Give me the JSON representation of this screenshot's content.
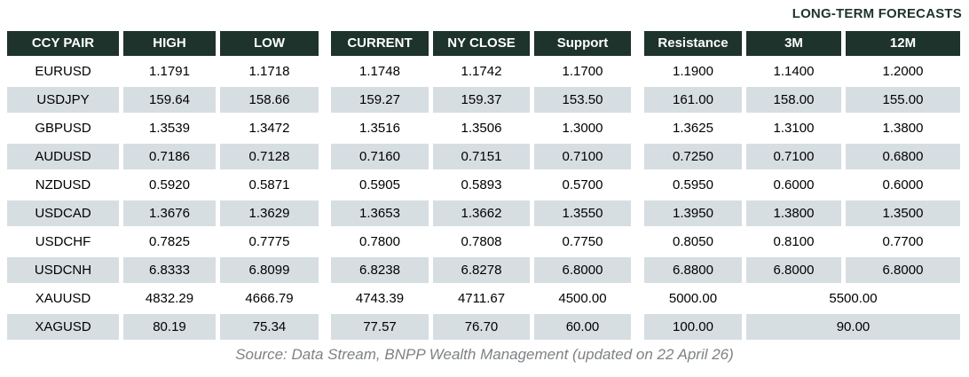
{
  "title": "LONG-TERM FORECASTS",
  "source": "Source: Data Stream, BNPP Wealth Management (updated on 22 April 26)",
  "colors": {
    "header_bg": "#1d332c",
    "header_text": "#ffffff",
    "row_alt_bg": "#d6dee2",
    "title_color": "#1d332c",
    "source_color": "#7e8285",
    "body_text": "#000000"
  },
  "chart_data": {
    "type": "table",
    "title": "LONG-TERM FORECASTS",
    "columns": [
      "CCY PAIR",
      "HIGH",
      "LOW",
      "CURRENT",
      "NY CLOSE",
      "Support",
      "Resistance",
      "3M",
      "12M"
    ],
    "rows": [
      {
        "cells": [
          "EURUSD",
          "1.1791",
          "1.1718",
          "1.1748",
          "1.1742",
          "1.1700",
          "1.1900",
          "1.1400",
          "1.2000"
        ]
      },
      {
        "cells": [
          "USDJPY",
          "159.64",
          "158.66",
          "159.27",
          "159.37",
          "153.50",
          "161.00",
          "158.00",
          "155.00"
        ]
      },
      {
        "cells": [
          "GBPUSD",
          "1.3539",
          "1.3472",
          "1.3516",
          "1.3506",
          "1.3000",
          "1.3625",
          "1.3100",
          "1.3800"
        ]
      },
      {
        "cells": [
          "AUDUSD",
          "0.7186",
          "0.7128",
          "0.7160",
          "0.7151",
          "0.7100",
          "0.7250",
          "0.7100",
          "0.6800"
        ]
      },
      {
        "cells": [
          "NZDUSD",
          "0.5920",
          "0.5871",
          "0.5905",
          "0.5893",
          "0.5700",
          "0.5950",
          "0.6000",
          "0.6000"
        ]
      },
      {
        "cells": [
          "USDCAD",
          "1.3676",
          "1.3629",
          "1.3653",
          "1.3662",
          "1.3550",
          "1.3950",
          "1.3800",
          "1.3500"
        ]
      },
      {
        "cells": [
          "USDCHF",
          "0.7825",
          "0.7775",
          "0.7800",
          "0.7808",
          "0.7750",
          "0.8050",
          "0.8100",
          "0.7700"
        ]
      },
      {
        "cells": [
          "USDCNH",
          "6.8333",
          "6.8099",
          "6.8238",
          "6.8278",
          "6.8000",
          "6.8800",
          "6.8000",
          "6.8000"
        ]
      },
      {
        "cells": [
          "XAUUSD",
          "4832.29",
          "4666.79",
          "4743.39",
          "4711.67",
          "4500.00",
          "5000.00"
        ],
        "merged_3m_12m": "5500.00"
      },
      {
        "cells": [
          "XAGUSD",
          "80.19",
          "75.34",
          "77.57",
          "76.70",
          "60.00",
          "100.00"
        ],
        "merged_3m_12m": "90.00"
      }
    ],
    "layout": {
      "alternate_row_shading": "even rows shaded starting with second row",
      "merged_cells": "rows XAUUSD and XAGUSD have 3M and 12M merged into one centered cell"
    }
  }
}
